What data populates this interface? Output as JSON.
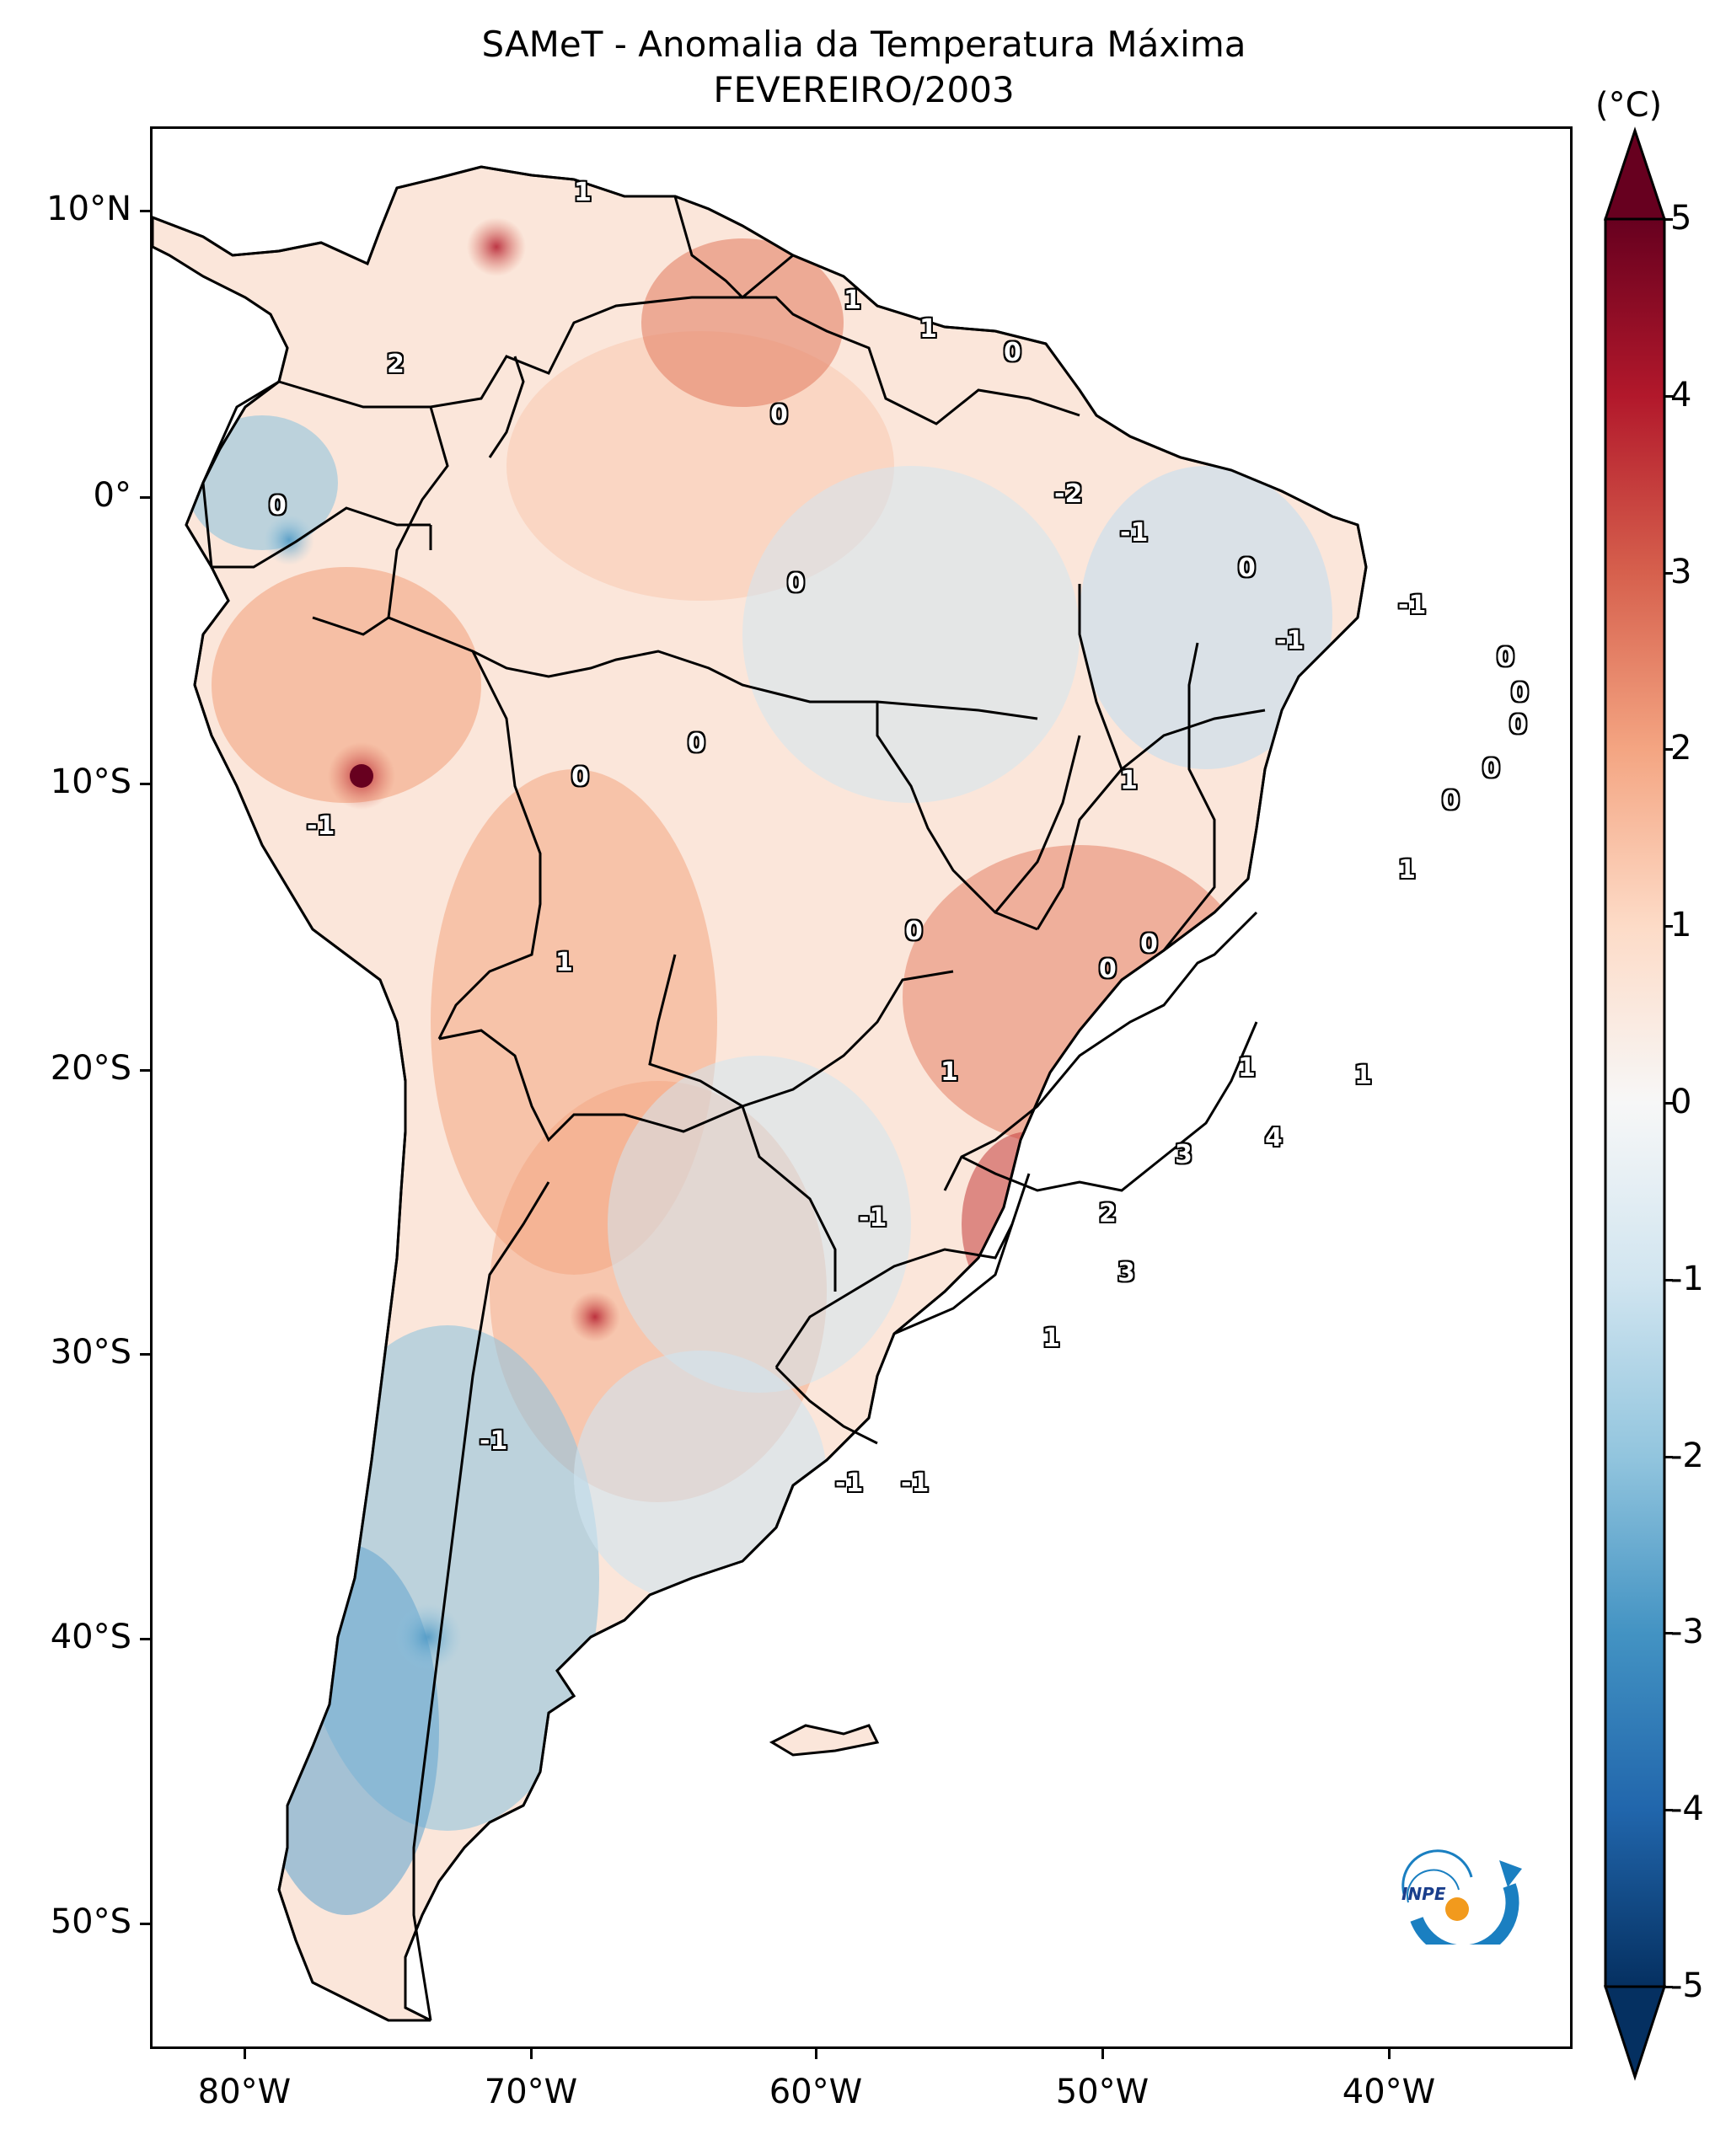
{
  "title": {
    "line1": "SAMeT - Anomalia da Temperatura Máxima",
    "line2": "FEVEREIRO/2003"
  },
  "axes": {
    "lat_labels": [
      "10°N",
      "0°",
      "10°S",
      "20°S",
      "30°S",
      "40°S",
      "50°S"
    ],
    "lon_labels": [
      "80°W",
      "70°W",
      "60°W",
      "50°W",
      "40°W"
    ]
  },
  "colorbar": {
    "unit": "(°C)",
    "ticks": [
      "5",
      "4",
      "3",
      "2",
      "1",
      "0",
      "-1",
      "-2",
      "-3",
      "-4",
      "-5"
    ],
    "min": -5,
    "max": 5,
    "colors": [
      "#053061",
      "#2166ac",
      "#4393c3",
      "#92c5de",
      "#d1e5f0",
      "#f7f7f7",
      "#fddbc7",
      "#f4a582",
      "#d6604d",
      "#b2182b",
      "#67001f"
    ]
  },
  "contour_labels": [
    "1",
    "1",
    "1",
    "0",
    "2",
    "0",
    "0",
    "-2",
    "-1",
    "0",
    "0",
    "-1",
    "-1",
    "0",
    "0",
    "0",
    "0",
    "0",
    "0",
    "0",
    "1",
    "-1",
    "1",
    "0",
    "0",
    "0",
    "1",
    "1",
    "1",
    "1",
    "3",
    "4",
    "2",
    "-1",
    "3",
    "1",
    "-1",
    "-1",
    "-1"
  ],
  "logo": {
    "text": "INPE"
  }
}
